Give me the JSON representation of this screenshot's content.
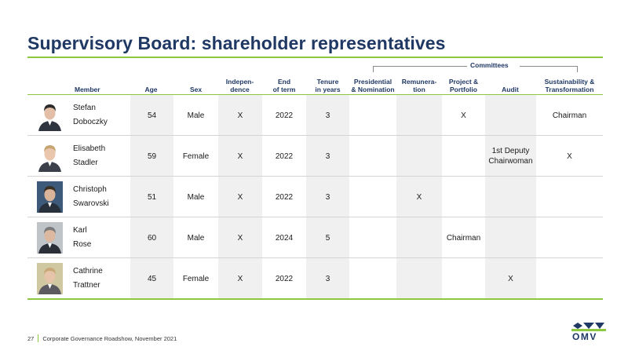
{
  "title": "Supervisory Board: shareholder representatives",
  "committees_label": "Committees",
  "headers": {
    "member": "Member",
    "age": "Age",
    "sex": "Sex",
    "independence": [
      "Indepen-",
      "dence"
    ],
    "end_of_term": [
      "End",
      "of term"
    ],
    "tenure": [
      "Tenure",
      "in years"
    ],
    "presidential": [
      "Presidential",
      "& Nomination"
    ],
    "remuneration": [
      "Remunera-",
      "tion"
    ],
    "project": [
      "Project &",
      "Portfolio"
    ],
    "audit": "Audit",
    "sustainability": [
      "Sustainability &",
      "Transformation"
    ]
  },
  "members": [
    {
      "first": "Stefan",
      "last": "Doboczky",
      "age": "54",
      "sex": "Male",
      "independence": "X",
      "end_of_term": "2022",
      "tenure": "3",
      "presidential": "",
      "remuneration": "",
      "project": "X",
      "audit": "",
      "sustainability": "Chairman"
    },
    {
      "first": "Elisabeth",
      "last": "Stadler",
      "age": "59",
      "sex": "Female",
      "independence": "X",
      "end_of_term": "2022",
      "tenure": "3",
      "presidential": "",
      "remuneration": "",
      "project": "",
      "audit": "1st Deputy Chairwoman",
      "sustainability": "X"
    },
    {
      "first": "Christoph",
      "last": "Swarovski",
      "age": "51",
      "sex": "Male",
      "independence": "X",
      "end_of_term": "2022",
      "tenure": "3",
      "presidential": "",
      "remuneration": "X",
      "project": "",
      "audit": "",
      "sustainability": ""
    },
    {
      "first": "Karl",
      "last": "Rose",
      "age": "60",
      "sex": "Male",
      "independence": "X",
      "end_of_term": "2024",
      "tenure": "5",
      "presidential": "",
      "remuneration": "",
      "project": "Chairman",
      "audit": "",
      "sustainability": ""
    },
    {
      "first": "Cathrine",
      "last": "Trattner",
      "age": "45",
      "sex": "Female",
      "independence": "X",
      "end_of_term": "2022",
      "tenure": "3",
      "presidential": "",
      "remuneration": "",
      "project": "",
      "audit": "X",
      "sustainability": ""
    }
  ],
  "footer": {
    "page": "27",
    "text": "Corporate Governance Roadshow, November 2021"
  },
  "logo_text": "OMV",
  "colors": {
    "title": "#1f3864",
    "accent_green": "#8dc63f",
    "shade": "#f0f0f0"
  }
}
